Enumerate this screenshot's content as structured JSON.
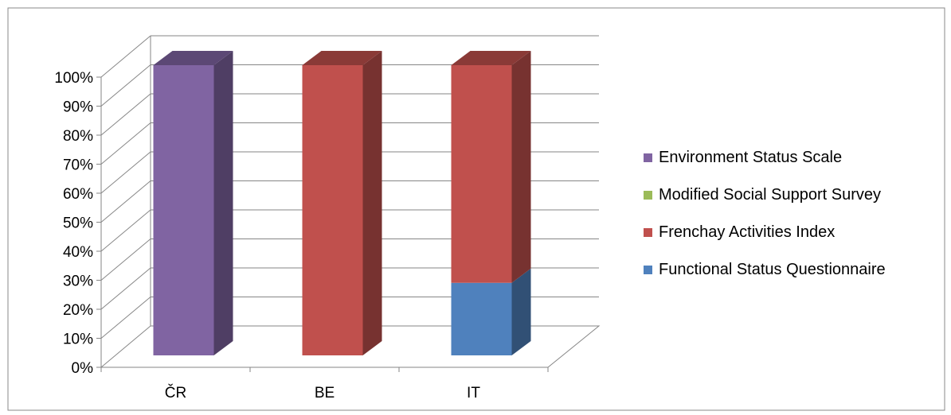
{
  "chart_data": {
    "type": "bar",
    "stacked": "100%",
    "three_d": true,
    "categories": [
      "ČR",
      "BE",
      "IT"
    ],
    "series": [
      {
        "name": "Functional Status Questionnaire",
        "color": "#4F81BD",
        "values": [
          0,
          0,
          25
        ]
      },
      {
        "name": "Frenchay Activities Index",
        "color": "#C0504D",
        "values": [
          0,
          100,
          75
        ]
      },
      {
        "name": "Modified Social Support Survey",
        "color": "#9BBB59",
        "values": [
          0,
          0,
          0
        ]
      },
      {
        "name": "Environment Status Scale",
        "color": "#8064A2",
        "values": [
          100,
          0,
          0
        ]
      }
    ],
    "yticks": [
      "0%",
      "10%",
      "20%",
      "30%",
      "40%",
      "50%",
      "60%",
      "70%",
      "80%",
      "90%",
      "100%"
    ],
    "ylim": [
      0,
      100
    ],
    "grid": true,
    "legend_position": "right",
    "title": "",
    "xlabel": "",
    "ylabel": ""
  },
  "legend_order": [
    "Environment Status Scale",
    "Modified Social Support Survey",
    "Frenchay Activities Index",
    "Functional Status Questionnaire"
  ]
}
